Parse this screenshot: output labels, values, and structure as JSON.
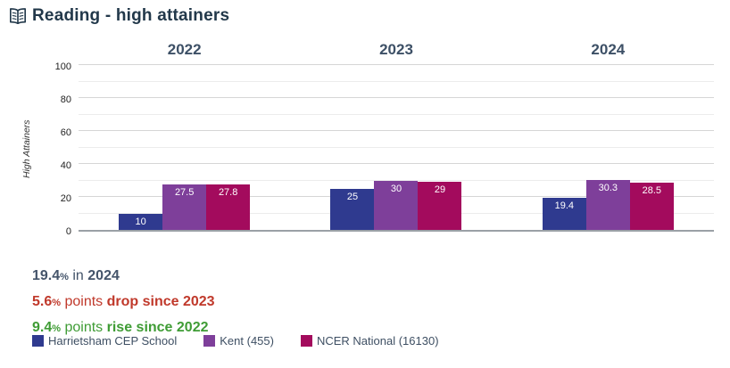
{
  "title": "Reading - high attainers",
  "title_icon": "open-book-icon",
  "chart_data": {
    "type": "bar",
    "categories": [
      "2022",
      "2023",
      "2024"
    ],
    "series": [
      {
        "name": "Harrietsham CEP School",
        "color": "#2f3a8f",
        "values": [
          10,
          25,
          19.4
        ]
      },
      {
        "name": "Kent (455)",
        "color": "#7e3f9a",
        "values": [
          27.5,
          30,
          30.3
        ]
      },
      {
        "name": "NCER National (16130)",
        "color": "#a30b5d",
        "values": [
          27.8,
          29,
          28.5
        ]
      }
    ],
    "ylabel": "High Attainers",
    "xlabel": "",
    "ylim": [
      0,
      100
    ],
    "yticks": [
      0,
      20,
      40,
      60,
      80,
      100
    ],
    "minor_grid_step": 10,
    "grid": true,
    "legend_position": "bottom",
    "bar_value_labels": [
      "10",
      "27.5",
      "27.8",
      "25",
      "30",
      "29",
      "19.4",
      "30.3",
      "28.5"
    ]
  },
  "summary_lines": [
    {
      "number": "19.4",
      "percent_sign": "%",
      "middle": " in ",
      "tail": "2024",
      "color": "#44546a"
    },
    {
      "number": "5.6",
      "percent_sign": "%",
      "middle": " points ",
      "tail": "drop since 2023",
      "color": "#c0392b"
    },
    {
      "number": "9.4",
      "percent_sign": "%",
      "middle": " points ",
      "tail": "rise since 2022",
      "color": "#3f9c35"
    }
  ],
  "colors": {
    "title_text": "#22384a",
    "year_header_text": "#3d5066",
    "legend_text": "#3e4f63",
    "baseline": "#9aa0a6",
    "major_gridline": "#d6d6d6",
    "minor_gridline": "#ececec"
  }
}
